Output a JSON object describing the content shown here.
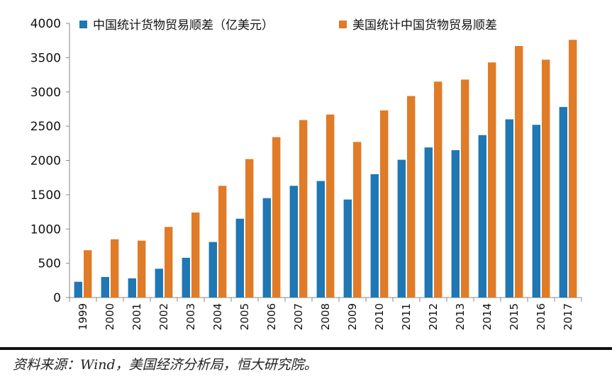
{
  "chart_data": {
    "type": "bar",
    "categories": [
      "1999",
      "2000",
      "2001",
      "2002",
      "2003",
      "2004",
      "2005",
      "2006",
      "2007",
      "2008",
      "2009",
      "2010",
      "2011",
      "2012",
      "2013",
      "2014",
      "2015",
      "2016",
      "2017"
    ],
    "series": [
      {
        "name": "中国统计货物贸易顺差（亿美元）",
        "color": "#1f77b4",
        "values": [
          230,
          300,
          280,
          420,
          580,
          810,
          1150,
          1450,
          1630,
          1700,
          1430,
          1800,
          2010,
          2190,
          2150,
          2370,
          2600,
          2520,
          2780
        ]
      },
      {
        "name": "美国统计中国货物贸易顺差",
        "color": "#e07b27",
        "values": [
          690,
          850,
          830,
          1030,
          1240,
          1630,
          2020,
          2340,
          2590,
          2670,
          2270,
          2730,
          2940,
          3150,
          3180,
          3430,
          3670,
          3470,
          3760
        ]
      }
    ],
    "ylim": [
      0,
      4000
    ],
    "yticks": [
      0,
      500,
      1000,
      1500,
      2000,
      2500,
      3000,
      3500,
      4000
    ],
    "legend_position": "top",
    "grid": false
  },
  "source_note": "资料来源：Wind，美国经济分析局，恒大研究院。"
}
